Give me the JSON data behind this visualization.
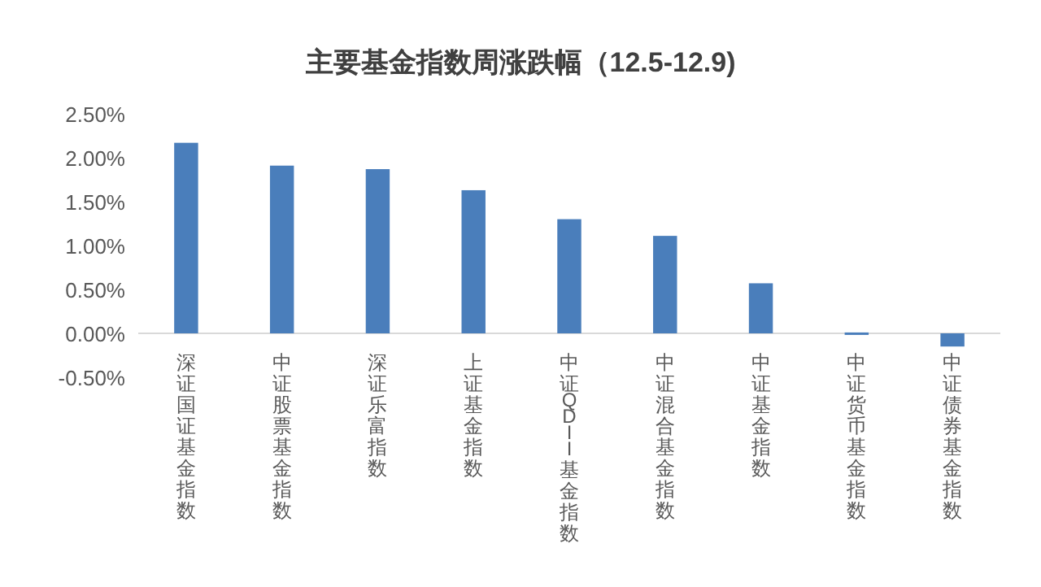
{
  "chart_data": {
    "type": "bar",
    "title": "主要基金指数周涨跌幅（12.5-12.9)",
    "categories": [
      "深证国证基金指数",
      "中证股票基金指数",
      "深证乐富指数",
      "上证基金指数",
      "中证QDII基金指数",
      "中证混合基金指数",
      "中证基金指数",
      "中证货币基金指数",
      "中证债券基金指数"
    ],
    "values": [
      2.17,
      1.91,
      1.87,
      1.63,
      1.3,
      1.11,
      0.57,
      0.01,
      -0.15
    ],
    "color": "#4a7ebb",
    "ylim": [
      -0.5,
      2.5
    ],
    "yticks": [
      {
        "value": -0.5,
        "label": "-0.50%"
      },
      {
        "value": 0,
        "label": "0.00%"
      },
      {
        "value": 0.5,
        "label": "0.50%"
      },
      {
        "value": 1,
        "label": "1.00%"
      },
      {
        "value": 1.5,
        "label": "1.50%"
      },
      {
        "value": 2,
        "label": "2.00%"
      },
      {
        "value": 2.5,
        "label": "2.50%"
      }
    ]
  }
}
